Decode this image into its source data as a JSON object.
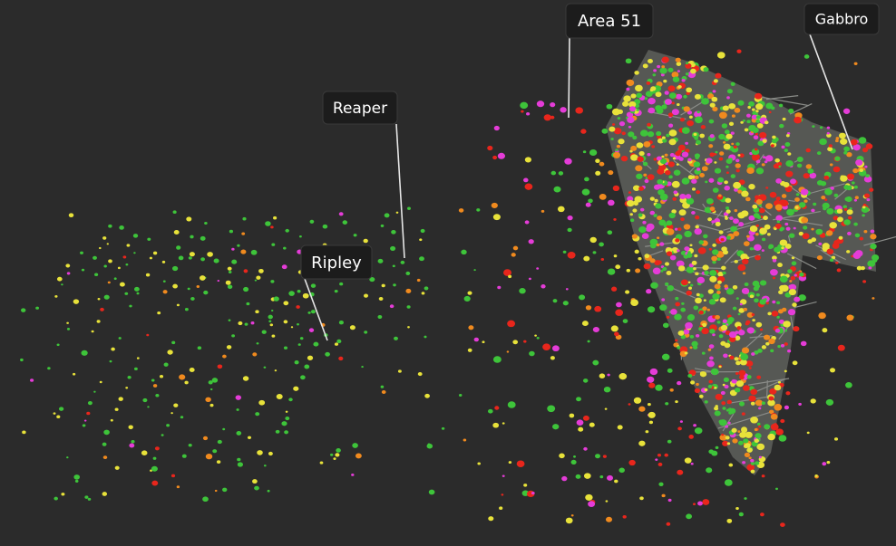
{
  "labels": [
    "Area 51",
    "Gabbro",
    "Reaper",
    "Ripley"
  ]
}
